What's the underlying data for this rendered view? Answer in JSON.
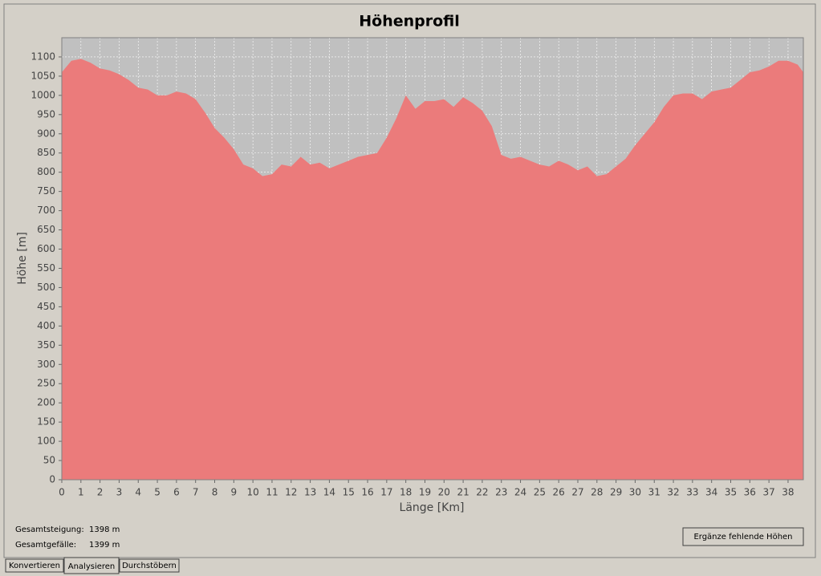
{
  "chart_data": {
    "type": "area",
    "title": "Höhenprofil",
    "xlabel": "Länge [Km]",
    "ylabel": "Höhe [m]",
    "x": [
      0,
      0.5,
      1,
      1.5,
      2,
      2.5,
      3,
      3.5,
      4,
      4.5,
      5,
      5.5,
      6,
      6.5,
      7,
      7.5,
      8,
      8.5,
      9,
      9.5,
      10,
      10.5,
      11,
      11.5,
      12,
      12.5,
      13,
      13.5,
      14,
      14.5,
      15,
      15.5,
      16,
      16.5,
      17,
      17.5,
      18,
      18.5,
      19,
      19.5,
      20,
      20.5,
      21,
      21.5,
      22,
      22.5,
      23,
      23.5,
      24,
      24.5,
      25,
      25.5,
      26,
      26.5,
      27,
      27.5,
      28,
      28.5,
      29,
      29.5,
      30,
      30.5,
      31,
      31.5,
      32,
      32.5,
      33,
      33.5,
      34,
      34.5,
      35,
      35.5,
      36,
      36.5,
      37,
      37.5,
      38,
      38.5,
      38.8
    ],
    "values": [
      1060,
      1090,
      1095,
      1085,
      1070,
      1065,
      1055,
      1040,
      1020,
      1015,
      1000,
      1000,
      1010,
      1005,
      990,
      955,
      915,
      890,
      860,
      820,
      810,
      790,
      795,
      820,
      815,
      840,
      820,
      825,
      810,
      820,
      830,
      840,
      845,
      850,
      890,
      940,
      1000,
      965,
      985,
      985,
      990,
      970,
      995,
      980,
      960,
      920,
      845,
      835,
      840,
      830,
      820,
      815,
      830,
      820,
      805,
      815,
      790,
      795,
      815,
      835,
      870,
      900,
      930,
      970,
      1000,
      1005,
      1005,
      990,
      1010,
      1015,
      1020,
      1040,
      1060,
      1065,
      1075,
      1090,
      1090,
      1080,
      1060
    ],
    "color": "#eb7b7b",
    "xlim": [
      0,
      38.8
    ],
    "ylim": [
      0,
      1150
    ],
    "xticks": [
      0,
      1,
      2,
      3,
      4,
      5,
      6,
      7,
      8,
      9,
      10,
      11,
      12,
      13,
      14,
      15,
      16,
      17,
      18,
      19,
      20,
      21,
      22,
      23,
      24,
      25,
      26,
      27,
      28,
      29,
      30,
      31,
      32,
      33,
      34,
      35,
      36,
      37,
      38
    ],
    "yticks": [
      0,
      50,
      100,
      150,
      200,
      250,
      300,
      350,
      400,
      450,
      500,
      550,
      600,
      650,
      700,
      750,
      800,
      850,
      900,
      950,
      1000,
      1050,
      1100
    ],
    "grid": true
  },
  "stats": [
    {
      "label": "Gesamtsteigung:",
      "value": "1398 m"
    },
    {
      "label": "Gesamtgefälle:",
      "value": "1399 m"
    }
  ],
  "button": "Ergänze fehlende Höhen",
  "tabs": [
    "Konvertieren",
    "Analysieren",
    "Durchstöbern"
  ]
}
